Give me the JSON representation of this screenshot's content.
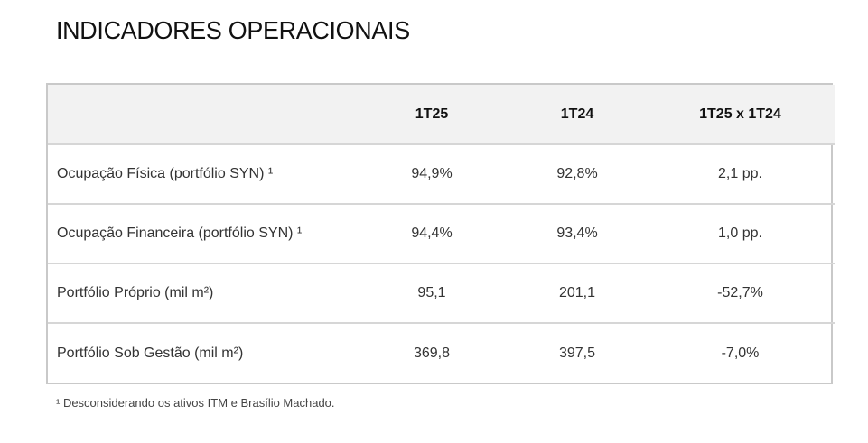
{
  "title": "INDICADORES OPERACIONAIS",
  "table": {
    "headers": [
      "",
      "1T25",
      "1T24",
      "1T25 x 1T24"
    ],
    "rows": [
      {
        "label": "Ocupação Física (portfólio SYN) ¹",
        "t25": "94,9%",
        "t24": "92,8%",
        "var": "2,1 pp."
      },
      {
        "label": "Ocupação Financeira (portfólio SYN) ¹",
        "t25": "94,4%",
        "t24": "93,4%",
        "var": "1,0 pp."
      },
      {
        "label": "Portfólio Próprio (mil m²)",
        "t25": "95,1",
        "t24": "201,1",
        "var": "-52,7%"
      },
      {
        "label": "Portfólio Sob Gestão (mil m²)",
        "t25": "369,8",
        "t24": "397,5",
        "var": "-7,0%"
      }
    ]
  },
  "footnote": "¹ Desconsiderando os ativos ITM e Brasílio Machado."
}
